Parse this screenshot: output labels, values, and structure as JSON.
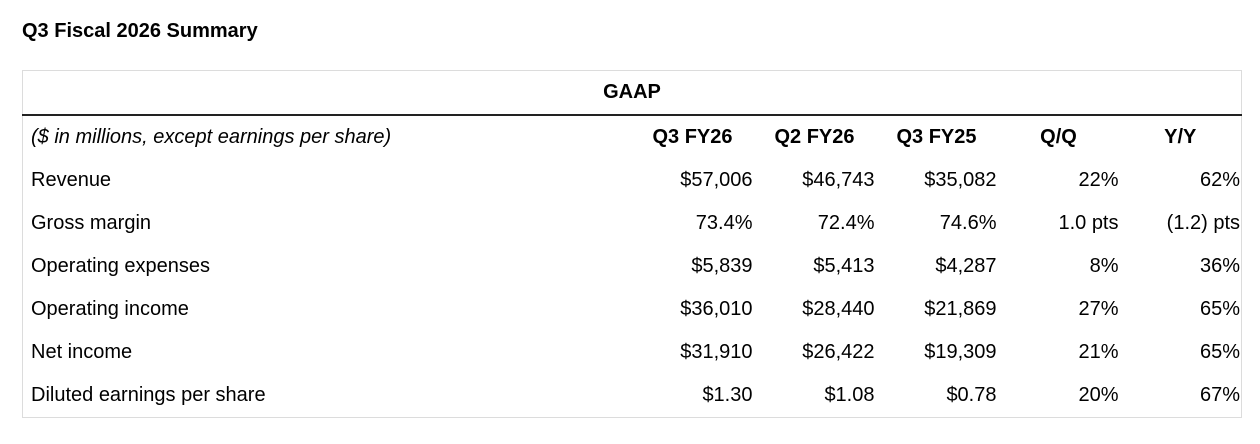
{
  "title": "Q3 Fiscal 2026 Summary",
  "table": {
    "group_header": "GAAP",
    "columns": [
      "($ in millions, except earnings per share)",
      "Q3 FY26",
      "Q2 FY26",
      "Q3 FY25",
      "Q/Q",
      "Y/Y"
    ],
    "rows": [
      [
        "Revenue",
        "$57,006",
        "$46,743",
        "$35,082",
        "22%",
        "62%"
      ],
      [
        "Gross margin",
        "73.4%",
        "72.4%",
        "74.6%",
        "1.0 pts",
        "(1.2) pts"
      ],
      [
        "Operating expenses",
        "$5,839",
        "$5,413",
        "$4,287",
        "8%",
        "36%"
      ],
      [
        "Operating income",
        "$36,010",
        "$28,440",
        "$21,869",
        "27%",
        "65%"
      ],
      [
        "Net income",
        "$31,910",
        "$26,422",
        "$19,309",
        "21%",
        "65%"
      ],
      [
        "Diluted earnings per share",
        "$1.30",
        "$1.08",
        "$0.78",
        "20%",
        "67%"
      ]
    ]
  }
}
